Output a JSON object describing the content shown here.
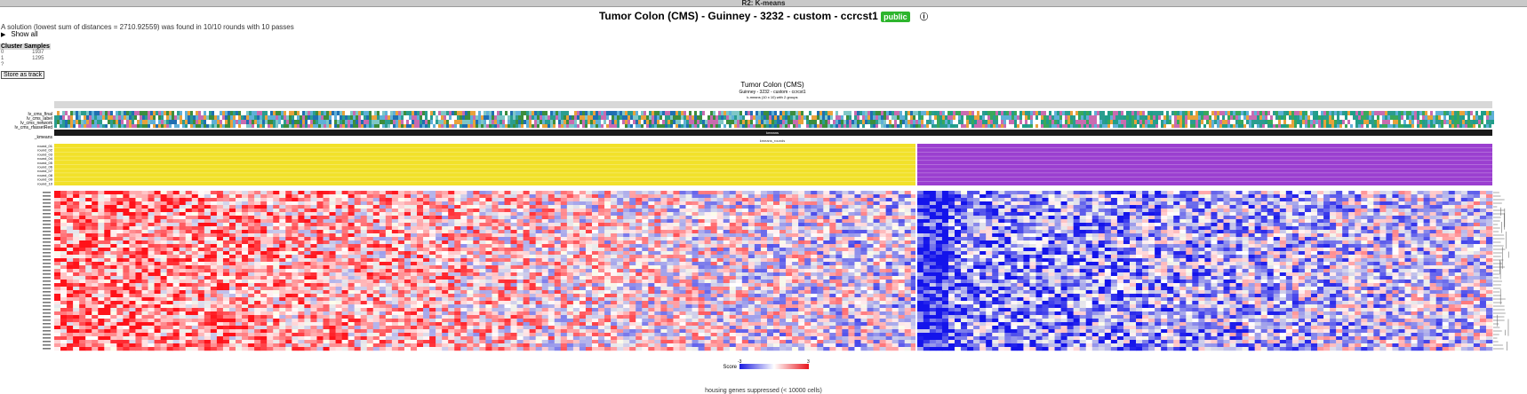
{
  "window": {
    "title": "R2: K-means"
  },
  "header": {
    "title": "Tumor Colon (CMS) - Guinney - 3232 - custom - ccrcst1",
    "badge": "public",
    "info_icon": "info-icon"
  },
  "summary": {
    "solution_text": "A solution (lowest sum of distances = 2710.92559) was found in 10/10 rounds with 10 passes",
    "show_all": "Show all"
  },
  "cluster_table": {
    "headers": [
      "Cluster",
      "Samples"
    ],
    "rows": [
      {
        "cluster": "0",
        "samples": "1937"
      },
      {
        "cluster": "1",
        "samples": "1295"
      },
      {
        "cluster": "?",
        "samples": ""
      }
    ]
  },
  "store_button": "Store as track",
  "figure": {
    "title": "Tumor Colon (CMS)",
    "subtitle": "Guinney - 3232 - custom - ccrcst1",
    "subsubtitle": "k-means (10 x 10) with 2 groups",
    "track_labels": [
      "lv_cms_final",
      "lv_cms_label",
      "lv_cms_network",
      "lv_cms_rfassetRed"
    ],
    "kmeans_label": "_kmeans",
    "kmeans_bar_label": "kmeans",
    "rounds_bar_label": "kmeans_rounds",
    "round_labels": [
      "round_01",
      "round_02",
      "round_03",
      "round_04",
      "round_05",
      "round_06",
      "round_07",
      "round_08",
      "round_09",
      "round_10"
    ],
    "colors": {
      "group0": "#f2e12a",
      "group1": "#9b3fd0",
      "kmeans_bar": "#1a1a1a",
      "high": "#e8141b",
      "low": "#1a1ae0"
    }
  },
  "legend": {
    "label": "Score",
    "min": "-3",
    "max": "3"
  },
  "footer_note": "housing genes suppressed (< 10000 cells)"
}
